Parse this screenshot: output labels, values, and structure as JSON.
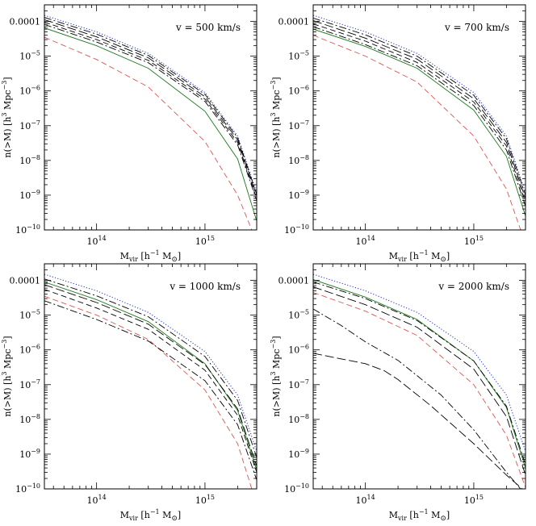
{
  "chart_data": [
    {
      "type": "line",
      "annotation": "v = 500 km/s",
      "xlabel_main": "M",
      "xlabel_sub": "vir",
      "xlabel_rest": " [h",
      "xlabel_sup": "−1",
      "xlabel_rest2": " M",
      "xlabel_sub2": "⊙",
      "xlabel_end": "]",
      "ylabel_main": "n(>M) [h",
      "ylabel_sup": "3",
      "ylabel_mid": " Mpc",
      "ylabel_sup2": "−3",
      "ylabel_end": "]",
      "xscale": "log",
      "yscale": "log",
      "xlim": [
        33000000000000.0,
        3000000000000000.0
      ],
      "ylim": [
        1e-10,
        0.0003
      ],
      "xticks": [
        {
          "value": 100000000000000.0,
          "base": "10",
          "exp": "14"
        },
        {
          "value": 1000000000000000.0,
          "base": "10",
          "exp": "15"
        }
      ],
      "yticks": [
        {
          "value": 0.0001,
          "text": "0.0001"
        },
        {
          "value": 1e-05,
          "base": "10",
          "exp": "−5"
        },
        {
          "value": 1e-06,
          "base": "10",
          "exp": "−6"
        },
        {
          "value": 1e-07,
          "base": "10",
          "exp": "−7"
        },
        {
          "value": 1e-08,
          "base": "10",
          "exp": "−8"
        },
        {
          "value": 1e-09,
          "base": "10",
          "exp": "−9"
        },
        {
          "value": 1e-10,
          "base": "10",
          "exp": "−10"
        }
      ],
      "series": [
        {
          "style": "dotted",
          "color": "#3344cc",
          "x": [
            33000000000000.0,
            100000000000000.0,
            300000000000000.0,
            1000000000000000.0,
            2000000000000000.0,
            3000000000000000.0
          ],
          "y": [
            0.00015,
            5e-05,
            1.2e-05,
            9e-07,
            5e-08,
            1.2e-09
          ]
        },
        {
          "style": "dashdot",
          "color": "#000000",
          "x": [
            33000000000000.0,
            100000000000000.0,
            300000000000000.0,
            1000000000000000.0,
            2000000000000000.0,
            3000000000000000.0
          ],
          "y": [
            0.00013,
            4.3e-05,
            1.05e-05,
            8e-07,
            4.5e-08,
            1.05e-09
          ]
        },
        {
          "style": "longdash",
          "color": "#000000",
          "x": [
            33000000000000.0,
            100000000000000.0,
            300000000000000.0,
            1000000000000000.0,
            2000000000000000.0,
            3000000000000000.0
          ],
          "y": [
            0.000112,
            3.6e-05,
            9e-06,
            6.8e-07,
            3.9e-08,
            9.5e-10
          ]
        },
        {
          "style": "dashed",
          "color": "#000000",
          "x": [
            33000000000000.0,
            100000000000000.0,
            300000000000000.0,
            1000000000000000.0,
            2000000000000000.0,
            3000000000000000.0
          ],
          "y": [
            9.5e-05,
            3e-05,
            7.6e-06,
            5.8e-07,
            3.3e-08,
            8e-10
          ]
        },
        {
          "style": "dashdot",
          "color": "#000000",
          "x": [
            33000000000000.0,
            100000000000000.0,
            300000000000000.0,
            1000000000000000.0,
            2000000000000000.0,
            3000000000000000.0
          ],
          "y": [
            8.2e-05,
            2.55e-05,
            6.5e-06,
            5e-07,
            2.8e-08,
            7e-10
          ]
        },
        {
          "style": "solid",
          "color": "#1b7a1b",
          "x": [
            33000000000000.0,
            100000000000000.0,
            300000000000000.0,
            1000000000000000.0,
            2000000000000000.0,
            3000000000000000.0
          ],
          "y": [
            6.5e-05,
            2e-05,
            4.5e-06,
            2.6e-07,
            1.1e-08,
            1.8e-10
          ]
        },
        {
          "style": "dashed",
          "color": "#dd5555",
          "x": [
            33000000000000.0,
            100000000000000.0,
            300000000000000.0,
            1000000000000000.0,
            2000000000000000.0,
            2700000000000000.0
          ],
          "y": [
            3.5e-05,
            8e-06,
            1.3e-06,
            3.5e-08,
            1e-09,
            1e-10
          ]
        }
      ]
    },
    {
      "type": "line",
      "annotation": "v = 700 km/s",
      "xlabel_main": "M",
      "xlabel_sub": "vir",
      "xlabel_rest": " [h",
      "xlabel_sup": "−1",
      "xlabel_rest2": " M",
      "xlabel_sub2": "⊙",
      "xlabel_end": "]",
      "ylabel_main": "n(>M) [h",
      "ylabel_sup": "3",
      "ylabel_mid": " Mpc",
      "ylabel_sup2": "−3",
      "ylabel_end": "]",
      "xscale": "log",
      "yscale": "log",
      "xlim": [
        33000000000000.0,
        3000000000000000.0
      ],
      "ylim": [
        1e-10,
        0.0003
      ],
      "xticks": [
        {
          "value": 100000000000000.0,
          "base": "10",
          "exp": "14"
        },
        {
          "value": 1000000000000000.0,
          "base": "10",
          "exp": "15"
        }
      ],
      "yticks": [
        {
          "value": 0.0001,
          "text": "0.0001"
        },
        {
          "value": 1e-05,
          "base": "10",
          "exp": "−5"
        },
        {
          "value": 1e-06,
          "base": "10",
          "exp": "−6"
        },
        {
          "value": 1e-07,
          "base": "10",
          "exp": "−7"
        },
        {
          "value": 1e-08,
          "base": "10",
          "exp": "−8"
        },
        {
          "value": 1e-09,
          "base": "10",
          "exp": "−9"
        },
        {
          "value": 1e-10,
          "base": "10",
          "exp": "−10"
        }
      ],
      "series": [
        {
          "style": "dotted",
          "color": "#3344cc",
          "x": [
            33000000000000.0,
            100000000000000.0,
            300000000000000.0,
            1000000000000000.0,
            2000000000000000.0,
            3000000000000000.0
          ],
          "y": [
            0.00015,
            5e-05,
            1.2e-05,
            9e-07,
            5e-08,
            1.2e-09
          ]
        },
        {
          "style": "dashdot",
          "color": "#000000",
          "x": [
            33000000000000.0,
            100000000000000.0,
            300000000000000.0,
            1000000000000000.0,
            2000000000000000.0,
            3000000000000000.0
          ],
          "y": [
            0.000125,
            4.1e-05,
            1e-05,
            7.5e-07,
            4.2e-08,
            1e-09
          ]
        },
        {
          "style": "longdash",
          "color": "#000000",
          "x": [
            33000000000000.0,
            100000000000000.0,
            300000000000000.0,
            1000000000000000.0,
            2000000000000000.0,
            3000000000000000.0
          ],
          "y": [
            0.000105,
            3.3e-05,
            8.2e-06,
            6e-07,
            3.3e-08,
            8e-10
          ]
        },
        {
          "style": "dashed",
          "color": "#000000",
          "x": [
            33000000000000.0,
            100000000000000.0,
            300000000000000.0,
            1000000000000000.0,
            2000000000000000.0,
            3000000000000000.0
          ],
          "y": [
            8.5e-05,
            2.7e-05,
            6.6e-06,
            4.8e-07,
            2.6e-08,
            6.3e-10
          ]
        },
        {
          "style": "dashdot",
          "color": "#000000",
          "x": [
            33000000000000.0,
            100000000000000.0,
            300000000000000.0,
            1000000000000000.0,
            2000000000000000.0,
            3000000000000000.0
          ],
          "y": [
            7e-05,
            2.15e-05,
            5.3e-06,
            3.8e-07,
            2e-08,
            4.8e-10
          ]
        },
        {
          "style": "solid",
          "color": "#1b7a1b",
          "x": [
            33000000000000.0,
            100000000000000.0,
            300000000000000.0,
            1000000000000000.0,
            2000000000000000.0,
            3000000000000000.0
          ],
          "y": [
            6e-05,
            1.9e-05,
            4.5e-06,
            2.8e-07,
            1.3e-08,
            2.5e-10
          ]
        },
        {
          "style": "dashed",
          "color": "#dd5555",
          "x": [
            33000000000000.0,
            100000000000000.0,
            300000000000000.0,
            1000000000000000.0,
            2000000000000000.0,
            2700000000000000.0
          ],
          "y": [
            4e-05,
            1e-05,
            1.8e-06,
            5e-08,
            1.5e-09,
            1e-10
          ]
        }
      ]
    },
    {
      "type": "line",
      "annotation": "v = 1000 km/s",
      "xlabel_main": "M",
      "xlabel_sub": "vir",
      "xlabel_rest": " [h",
      "xlabel_sup": "−1",
      "xlabel_rest2": " M",
      "xlabel_sub2": "⊙",
      "xlabel_end": "]",
      "ylabel_main": "n(>M) [h",
      "ylabel_sup": "3",
      "ylabel_mid": " Mpc",
      "ylabel_sup2": "−3",
      "ylabel_end": "]",
      "xscale": "log",
      "yscale": "log",
      "xlim": [
        33000000000000.0,
        3000000000000000.0
      ],
      "ylim": [
        1e-10,
        0.0003
      ],
      "xticks": [
        {
          "value": 100000000000000.0,
          "base": "10",
          "exp": "14"
        },
        {
          "value": 1000000000000000.0,
          "base": "10",
          "exp": "15"
        }
      ],
      "yticks": [
        {
          "value": 0.0001,
          "text": "0.0001"
        },
        {
          "value": 1e-05,
          "base": "10",
          "exp": "−5"
        },
        {
          "value": 1e-06,
          "base": "10",
          "exp": "−6"
        },
        {
          "value": 1e-07,
          "base": "10",
          "exp": "−7"
        },
        {
          "value": 1e-08,
          "base": "10",
          "exp": "−8"
        },
        {
          "value": 1e-09,
          "base": "10",
          "exp": "−9"
        },
        {
          "value": 1e-10,
          "base": "10",
          "exp": "−10"
        }
      ],
      "series": [
        {
          "style": "dotted",
          "color": "#3344cc",
          "x": [
            33000000000000.0,
            100000000000000.0,
            300000000000000.0,
            1000000000000000.0,
            2000000000000000.0,
            3000000000000000.0
          ],
          "y": [
            0.00015,
            5e-05,
            1.2e-05,
            9e-07,
            5e-08,
            1.2e-09
          ]
        },
        {
          "style": "dashdot",
          "color": "#000000",
          "x": [
            33000000000000.0,
            100000000000000.0,
            300000000000000.0,
            1000000000000000.0,
            2000000000000000.0,
            3000000000000000.0
          ],
          "y": [
            0.00011,
            3.6e-05,
            9e-06,
            6.5e-07,
            3.5e-08,
            8e-10
          ]
        },
        {
          "style": "solid",
          "color": "#1b7a1b",
          "x": [
            33000000000000.0,
            100000000000000.0,
            300000000000000.0,
            1000000000000000.0,
            2000000000000000.0,
            3000000000000000.0
          ],
          "y": [
            9e-05,
            2.8e-05,
            6.5e-06,
            4e-07,
            1.8e-08,
            3.5e-10
          ]
        },
        {
          "style": "longdash",
          "color": "#000000",
          "x": [
            33000000000000.0,
            100000000000000.0,
            300000000000000.0,
            1000000000000000.0,
            2000000000000000.0,
            3000000000000000.0
          ],
          "y": [
            7.5e-05,
            2.3e-05,
            5.5e-06,
            3.8e-07,
            2e-08,
            4.5e-10
          ]
        },
        {
          "style": "dashed",
          "color": "#000000",
          "x": [
            33000000000000.0,
            100000000000000.0,
            300000000000000.0,
            1000000000000000.0,
            2000000000000000.0,
            3000000000000000.0
          ],
          "y": [
            5.5e-05,
            1.6e-05,
            3.9e-06,
            2.6e-07,
            1.3e-08,
            3e-10
          ]
        },
        {
          "style": "dashed",
          "color": "#dd5555",
          "x": [
            33000000000000.0,
            100000000000000.0,
            300000000000000.0,
            1000000000000000.0,
            2000000000000000.0,
            2700000000000000.0
          ],
          "y": [
            3.5e-05,
            1e-05,
            2e-06,
            7e-08,
            2e-09,
            1e-10
          ]
        },
        {
          "style": "dashdot",
          "color": "#000000",
          "x": [
            33000000000000.0,
            100000000000000.0,
            300000000000000.0,
            1000000000000000.0,
            2000000000000000.0,
            3000000000000000.0
          ],
          "y": [
            2.6e-05,
            7.5e-06,
            1.8e-06,
            1.3e-07,
            7e-09,
            1.8e-10
          ]
        }
      ]
    },
    {
      "type": "line",
      "annotation": "v = 2000 km/s",
      "xlabel_main": "M",
      "xlabel_sub": "vir",
      "xlabel_rest": " [h",
      "xlabel_sup": "−1",
      "xlabel_rest2": " M",
      "xlabel_sub2": "⊙",
      "xlabel_end": "]",
      "ylabel_main": "n(>M) [h",
      "ylabel_sup": "3",
      "ylabel_mid": " Mpc",
      "ylabel_sup2": "−3",
      "ylabel_end": "]",
      "xscale": "log",
      "yscale": "log",
      "xlim": [
        33000000000000.0,
        3000000000000000.0
      ],
      "ylim": [
        1e-10,
        0.0003
      ],
      "xticks": [
        {
          "value": 100000000000000.0,
          "base": "10",
          "exp": "14"
        },
        {
          "value": 1000000000000000.0,
          "base": "10",
          "exp": "15"
        }
      ],
      "yticks": [
        {
          "value": 0.0001,
          "text": "0.0001"
        },
        {
          "value": 1e-05,
          "base": "10",
          "exp": "−5"
        },
        {
          "value": 1e-06,
          "base": "10",
          "exp": "−6"
        },
        {
          "value": 1e-07,
          "base": "10",
          "exp": "−7"
        },
        {
          "value": 1e-08,
          "base": "10",
          "exp": "−8"
        },
        {
          "value": 1e-09,
          "base": "10",
          "exp": "−9"
        },
        {
          "value": 1e-10,
          "base": "10",
          "exp": "−10"
        }
      ],
      "series": [
        {
          "style": "dotted",
          "color": "#3344cc",
          "x": [
            33000000000000.0,
            100000000000000.0,
            300000000000000.0,
            1000000000000000.0,
            2000000000000000.0,
            3000000000000000.0
          ],
          "y": [
            0.00015,
            5e-05,
            1.2e-05,
            9e-07,
            5e-08,
            1.2e-09
          ]
        },
        {
          "style": "solid",
          "color": "#1b7a1b",
          "x": [
            33000000000000.0,
            100000000000000.0,
            300000000000000.0,
            1000000000000000.0,
            2000000000000000.0,
            3000000000000000.0
          ],
          "y": [
            0.000105,
            3.3e-05,
            7.5e-06,
            4.8e-07,
            2.2e-08,
            4e-10
          ]
        },
        {
          "style": "dashdot",
          "color": "#000000",
          "x": [
            33000000000000.0,
            100000000000000.0,
            300000000000000.0,
            1000000000000000.0,
            2000000000000000.0,
            3000000000000000.0
          ],
          "y": [
            9e-05,
            3e-05,
            7e-06,
            4.8e-07,
            2.4e-08,
            5e-10
          ]
        },
        {
          "style": "longdash",
          "color": "#000000",
          "x": [
            33000000000000.0,
            100000000000000.0,
            300000000000000.0,
            1000000000000000.0,
            2000000000000000.0,
            3000000000000000.0
          ],
          "y": [
            6.5e-05,
            2e-05,
            4.5e-06,
            2.8e-07,
            1.2e-08,
            2.5e-10
          ]
        },
        {
          "style": "dashed",
          "color": "#dd5555",
          "x": [
            33000000000000.0,
            100000000000000.0,
            300000000000000.0,
            1000000000000000.0,
            2000000000000000.0,
            3000000000000000.0
          ],
          "y": [
            4.5e-05,
            1.3e-05,
            2.6e-06,
            1e-07,
            3.5e-09,
            1.1e-10
          ]
        },
        {
          "style": "dashdot",
          "color": "#000000",
          "x": [
            33000000000000.0,
            60000000000000.0,
            100000000000000.0,
            200000000000000.0,
            500000000000000.0,
            1000000000000000.0,
            2000000000000000.0,
            2700000000000000.0
          ],
          "y": [
            1.5e-05,
            5e-06,
            1.7e-06,
            5e-07,
            5e-08,
            5e-09,
            3e-10,
            1e-10
          ]
        },
        {
          "style": "longdash",
          "color": "#000000",
          "x": [
            33000000000000.0,
            60000000000000.0,
            100000000000000.0,
            150000000000000.0,
            200000000000000.0,
            400000000000000.0,
            1000000000000000.0,
            2000000000000000.0,
            2800000000000000.0
          ],
          "y": [
            8e-07,
            5.5e-07,
            4e-07,
            2.5e-07,
            1.4e-07,
            2.5e-08,
            2e-09,
            2.5e-10,
            1e-10
          ]
        }
      ]
    }
  ]
}
